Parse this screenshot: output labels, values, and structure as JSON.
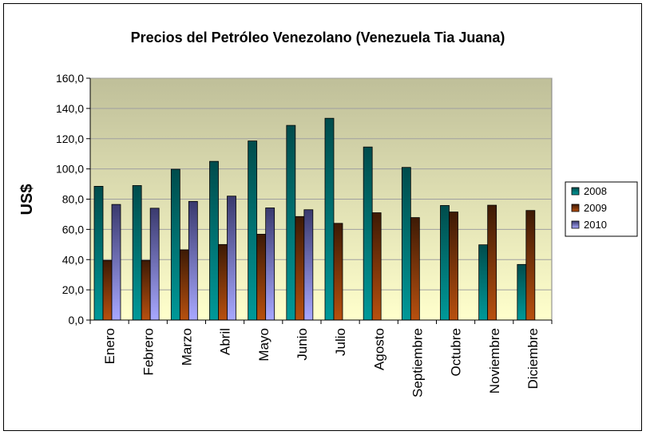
{
  "chart_data": {
    "type": "bar",
    "title": "Precios del Petróleo Venezolano (Venezuela Tia Juana)",
    "ylabel": "US$",
    "xlabel": "",
    "ylim": [
      0,
      160
    ],
    "yticks": [
      "0,0",
      "20,0",
      "40,0",
      "60,0",
      "80,0",
      "100,0",
      "120,0",
      "140,0",
      "160,0"
    ],
    "categories": [
      "Enero",
      "Febrero",
      "Marzo",
      "Abril",
      "Mayo",
      "Junio",
      "Julio",
      "Agosto",
      "Septiembre",
      "Octubre",
      "Noviembre",
      "Diciembre"
    ],
    "series": [
      {
        "name": "2008",
        "color": "#006b6b",
        "values": [
          88.5,
          89.0,
          99.8,
          105.0,
          118.5,
          128.8,
          133.5,
          114.5,
          101.0,
          75.8,
          49.8,
          36.8
        ]
      },
      {
        "name": "2009",
        "color": "#8b3a0c",
        "values": [
          39.5,
          39.5,
          46.5,
          50.0,
          56.8,
          68.5,
          64.0,
          71.0,
          67.8,
          71.5,
          76.0,
          72.5
        ]
      },
      {
        "name": "2010",
        "color": "#9f9fe8",
        "values": [
          76.5,
          74.0,
          78.5,
          82.0,
          74.2,
          73.0,
          null,
          null,
          null,
          null,
          null,
          null
        ]
      }
    ],
    "grid": true,
    "legend": "right",
    "plot_background": "gradient olive to pale yellow"
  }
}
